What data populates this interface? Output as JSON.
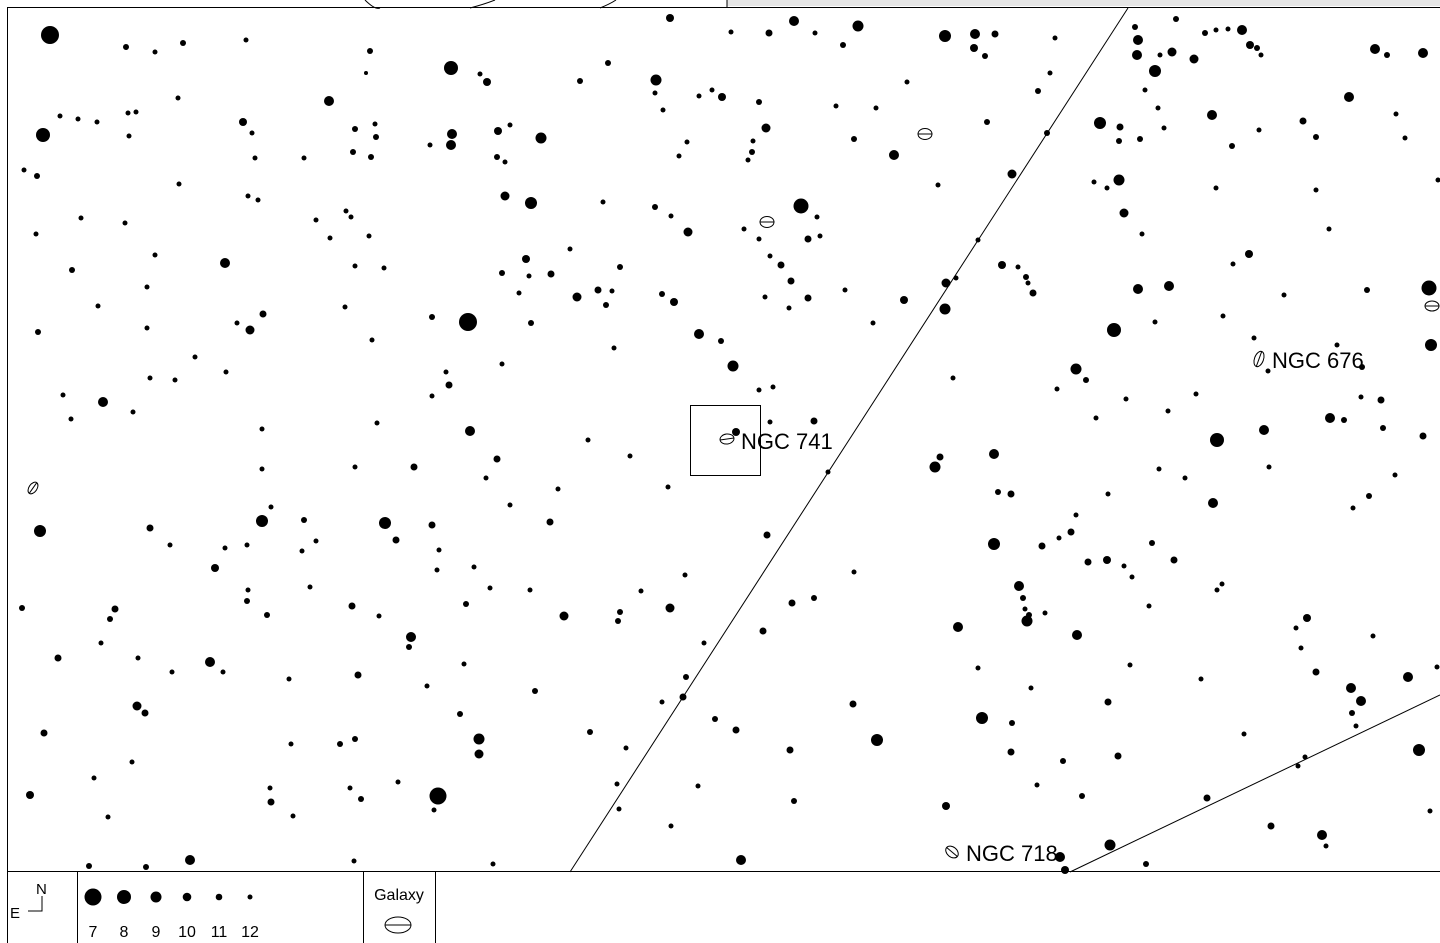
{
  "colors": {
    "background": "#ffffff",
    "ink": "#000000",
    "topbar": "#e6e6e6"
  },
  "objects": [
    {
      "id": "ngc741",
      "label": "NGC 741",
      "type": "galaxy",
      "boxed": true
    },
    {
      "id": "ngc676",
      "label": "NGC 676",
      "type": "galaxy"
    },
    {
      "id": "ngc718",
      "label": "NGC 718",
      "type": "galaxy"
    }
  ],
  "legend": {
    "compass": {
      "north": "N",
      "east": "E"
    },
    "magnitudes": [
      "7",
      "8",
      "9",
      "10",
      "11",
      "12"
    ],
    "symbol_title": "Galaxy"
  }
}
